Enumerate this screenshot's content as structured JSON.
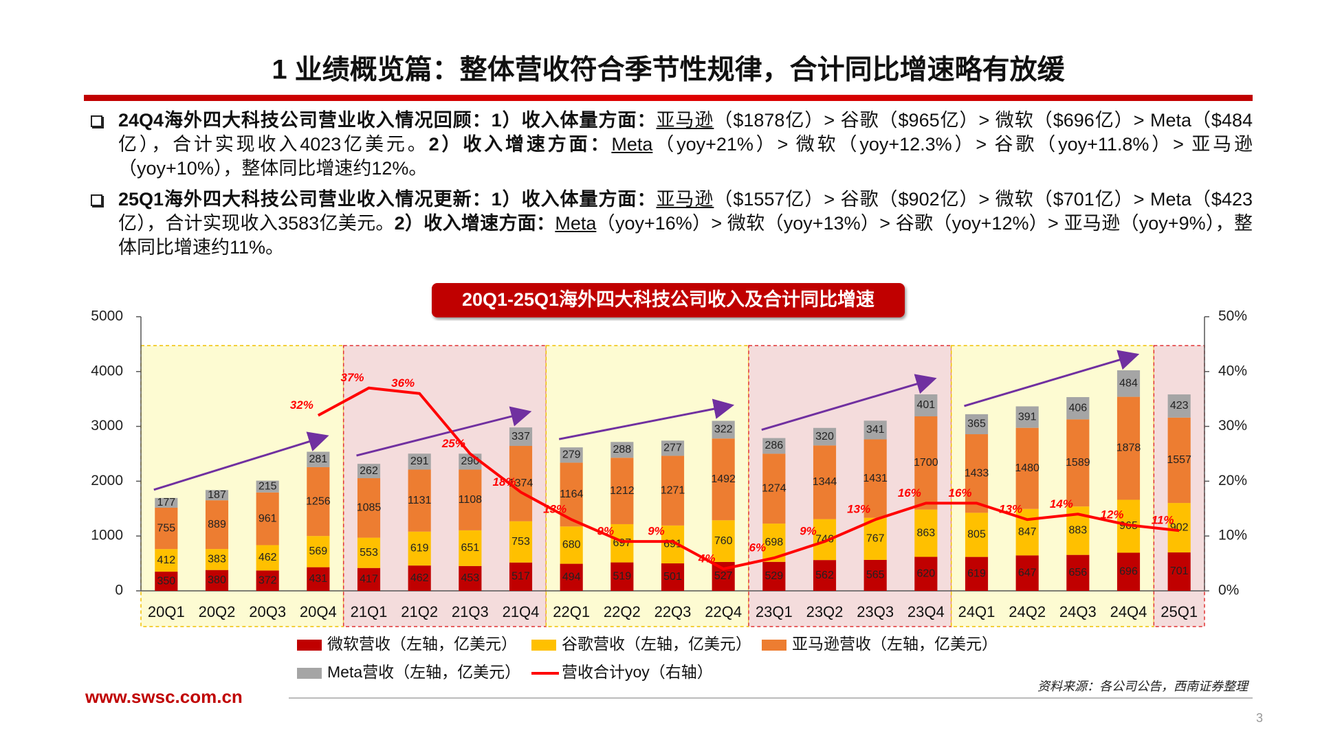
{
  "header": {
    "title": "1 业绩概览篇：整体营收符合季节性规律，合计同比增速略有放缓"
  },
  "bullets": [
    [
      "24Q4海外四大科技公司营业收入情况回顾：1）收入体量方面：",
      "亚马逊",
      "（$1878亿）> 谷歌（$965亿）> 微软（$696亿）> Meta（$484亿），合计实现收入4023亿美元。",
      "2）收入增速方面：",
      "Meta",
      "（yoy+21%）> 微软（yoy+12.3%）> 谷歌（yoy+11.8%）> 亚马逊（yoy+10%），整体同比增速约12%。"
    ],
    [
      "25Q1海外四大科技公司营业收入情况更新：1）收入体量方面：",
      "亚马逊",
      "（$1557亿）> 谷歌（$902亿）> 微软（$701亿）> Meta（$423亿），合计实现收入3583亿美元。",
      "2）收入增速方面：",
      "Meta",
      "（yoy+16%）> 微软（yoy+13%）> 谷歌（yoy+12%）> 亚马逊（yoy+9%），整体同比增速约11%。"
    ]
  ],
  "chart_data": {
    "type": "bar",
    "stacked": true,
    "title": "20Q1-25Q1海外四大科技公司收入及合计同比增速",
    "categories": [
      "20Q1",
      "20Q2",
      "20Q3",
      "20Q4",
      "21Q1",
      "21Q2",
      "21Q3",
      "21Q4",
      "22Q1",
      "22Q2",
      "22Q3",
      "22Q4",
      "23Q1",
      "23Q2",
      "23Q3",
      "23Q4",
      "24Q1",
      "24Q2",
      "24Q3",
      "24Q4",
      "25Q1"
    ],
    "series": [
      {
        "name": "微软营收（左轴，亿美元）",
        "color": "#c00000",
        "values": [
          350,
          380,
          372,
          431,
          417,
          462,
          453,
          517,
          494,
          519,
          501,
          527,
          529,
          562,
          565,
          620,
          619,
          647,
          656,
          696,
          701
        ]
      },
      {
        "name": "谷歌营收（左轴，亿美元）",
        "color": "#ffc000",
        "values": [
          412,
          383,
          462,
          569,
          553,
          619,
          651,
          753,
          680,
          697,
          691,
          760,
          698,
          746,
          767,
          863,
          805,
          847,
          883,
          965,
          902
        ]
      },
      {
        "name": "亚马逊营收（左轴，亿美元）",
        "color": "#ed7d31",
        "values": [
          755,
          889,
          961,
          1256,
          1085,
          1131,
          1108,
          1374,
          1164,
          1212,
          1271,
          1492,
          1274,
          1344,
          1431,
          1700,
          1433,
          1480,
          1589,
          1878,
          1557
        ]
      },
      {
        "name": "Meta营收（左轴，亿美元）",
        "color": "#a5a5a5",
        "values": [
          177,
          187,
          215,
          281,
          262,
          291,
          290,
          337,
          279,
          288,
          277,
          322,
          286,
          320,
          341,
          401,
          365,
          391,
          406,
          484,
          423
        ]
      },
      {
        "name": "营收合计yoy（右轴）",
        "color": "#ff0000",
        "type": "line",
        "axis": "y2",
        "values": [
          null,
          null,
          null,
          32,
          37,
          36,
          25,
          18,
          13,
          9,
          9,
          4,
          6,
          9,
          13,
          16,
          16,
          13,
          14,
          12,
          11
        ],
        "value_labels": [
          null,
          null,
          null,
          "32%",
          "37%",
          "36%",
          "25%",
          "18%",
          "13%",
          "9%",
          "9%",
          "4%",
          "6%",
          "9%",
          "13%",
          "16%",
          "16%",
          "13%",
          "14%",
          "12%",
          "11%"
        ]
      }
    ],
    "ylim": [
      0,
      5000
    ],
    "yticks": [
      0,
      1000,
      2000,
      3000,
      4000,
      5000
    ],
    "y2lim": [
      0,
      50
    ],
    "y2ticks": [
      {
        "value": 0,
        "label": "0%"
      },
      {
        "value": 10,
        "label": "10%"
      },
      {
        "value": 20,
        "label": "20%"
      },
      {
        "value": 30,
        "label": "30%"
      },
      {
        "value": 40,
        "label": "40%"
      },
      {
        "value": 50,
        "label": "50%"
      }
    ],
    "grid": false
  },
  "footer": {
    "website": "www.swsc.com.cn",
    "source": "资料来源：各公司公告，西南证券整理",
    "page": "3"
  }
}
